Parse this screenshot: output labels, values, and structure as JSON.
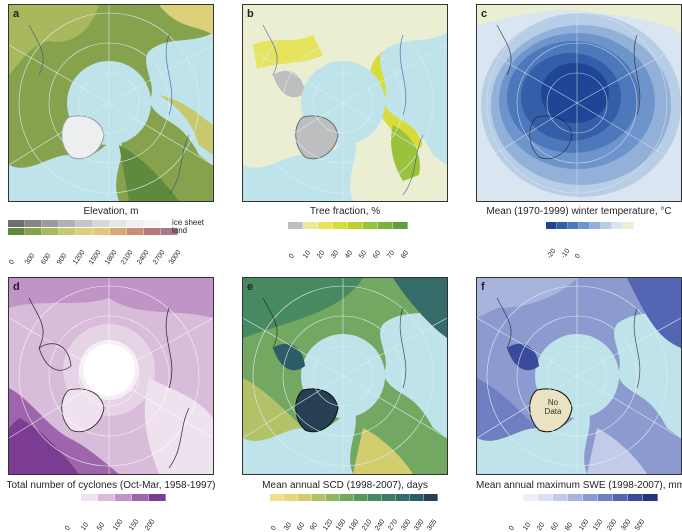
{
  "panels": [
    {
      "letter": "a",
      "caption": "Elevation, m",
      "legend_labels": [
        "ice sheet",
        "land"
      ],
      "ticks": [
        "0",
        "300",
        "600",
        "900",
        "1200",
        "1500",
        "1800",
        "2100",
        "2400",
        "2700",
        "3000"
      ],
      "colors_ice": [
        "#6d6e70",
        "#858688",
        "#9b9c9e",
        "#b0b1b3",
        "#c4c5c7",
        "#d6d7d9",
        "#e4e5e6",
        "#eeeff0",
        "#f6f6f6",
        "#ffffff"
      ],
      "colors_land": [
        "#5f8a3e",
        "#86a24c",
        "#a9b85d",
        "#c8c86e",
        "#ddd07a",
        "#e6c47b",
        "#d9a872",
        "#c98d73",
        "#b87878",
        "#a8798e"
      ]
    },
    {
      "letter": "b",
      "caption": "Tree fraction, %",
      "ticks": [
        "0",
        "10",
        "20",
        "30",
        "40",
        "50",
        "60",
        "70",
        "80"
      ],
      "colors": [
        "#bdbec0",
        "#ece89a",
        "#e6e35c",
        "#d6dc3a",
        "#bcd034",
        "#9cc23c",
        "#7db040",
        "#5f9d3d"
      ]
    },
    {
      "letter": "c",
      "caption": "Mean (1970-1999) winter temperature, °C",
      "ticks": [
        "-20",
        "-10",
        "0"
      ],
      "colors": [
        "#1f4596",
        "#345ea8",
        "#4d78bb",
        "#6e94cc",
        "#93b0d9",
        "#b8cde6",
        "#d9e5f1",
        "#e9efd0"
      ]
    },
    {
      "letter": "d",
      "caption": "Total number of cyclones (Oct-Mar, 1958-1997)",
      "ticks": [
        "0",
        "10",
        "50",
        "100",
        "150",
        "200"
      ],
      "colors": [
        "#ffffff",
        "#efe2ef",
        "#d9bcd9",
        "#c094c6",
        "#9e65ad",
        "#7a3d91"
      ]
    },
    {
      "letter": "e",
      "caption": "Mean annual SCD (1998-2007), days",
      "ticks": [
        "0",
        "30",
        "60",
        "90",
        "120",
        "150",
        "180",
        "210",
        "240",
        "270",
        "300",
        "330",
        "365"
      ],
      "colors": [
        "#f6dd8a",
        "#e8d67a",
        "#d2cd6d",
        "#b4c267",
        "#92b663",
        "#72a862",
        "#58985f",
        "#478a62",
        "#3d7b66",
        "#356b69",
        "#2e5b68",
        "#263f52"
      ]
    },
    {
      "letter": "f",
      "caption": "Mean annual maximum SWE (1998-2007), mm",
      "nodata": "No Data",
      "ticks": [
        "0",
        "10",
        "20",
        "60",
        "80",
        "100",
        "150",
        "200",
        "300",
        "500"
      ],
      "colors": [
        "#ffffff",
        "#eef0f8",
        "#dbe0f0",
        "#c3cbe8",
        "#a9b4dd",
        "#8c9ad0",
        "#6f80c2",
        "#5466b3",
        "#3a4a9c",
        "#24347e"
      ]
    }
  ]
}
